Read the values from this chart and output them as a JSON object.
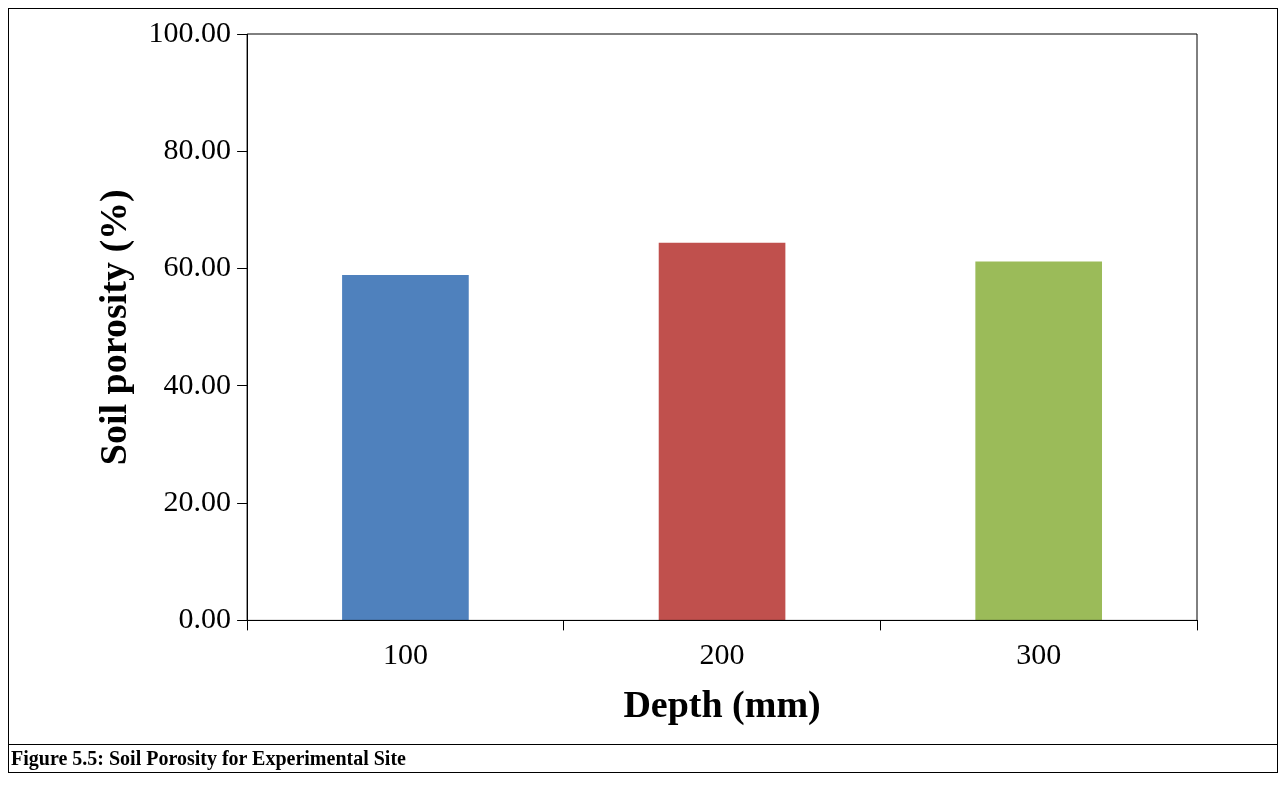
{
  "chart_data": {
    "type": "bar",
    "xlabel": "Depth (mm)",
    "ylabel": "Soil porosity (%)",
    "categories": [
      "100",
      "200",
      "300"
    ],
    "values": [
      58.9,
      64.4,
      61.2
    ],
    "colors": [
      "#4f81bd",
      "#c0504d",
      "#9bbb59"
    ],
    "ylim": [
      0,
      100
    ],
    "yticks": [
      {
        "value": 0,
        "label": "0.00"
      },
      {
        "value": 20,
        "label": "20.00"
      },
      {
        "value": 40,
        "label": "40.00"
      },
      {
        "value": 60,
        "label": "60.00"
      },
      {
        "value": 80,
        "label": "80.00"
      },
      {
        "value": 100,
        "label": "100.00"
      }
    ],
    "grid": false,
    "legend": false,
    "annotations": [
      "Figure 5.5: Soil Porosity for Experimental Site"
    ]
  }
}
